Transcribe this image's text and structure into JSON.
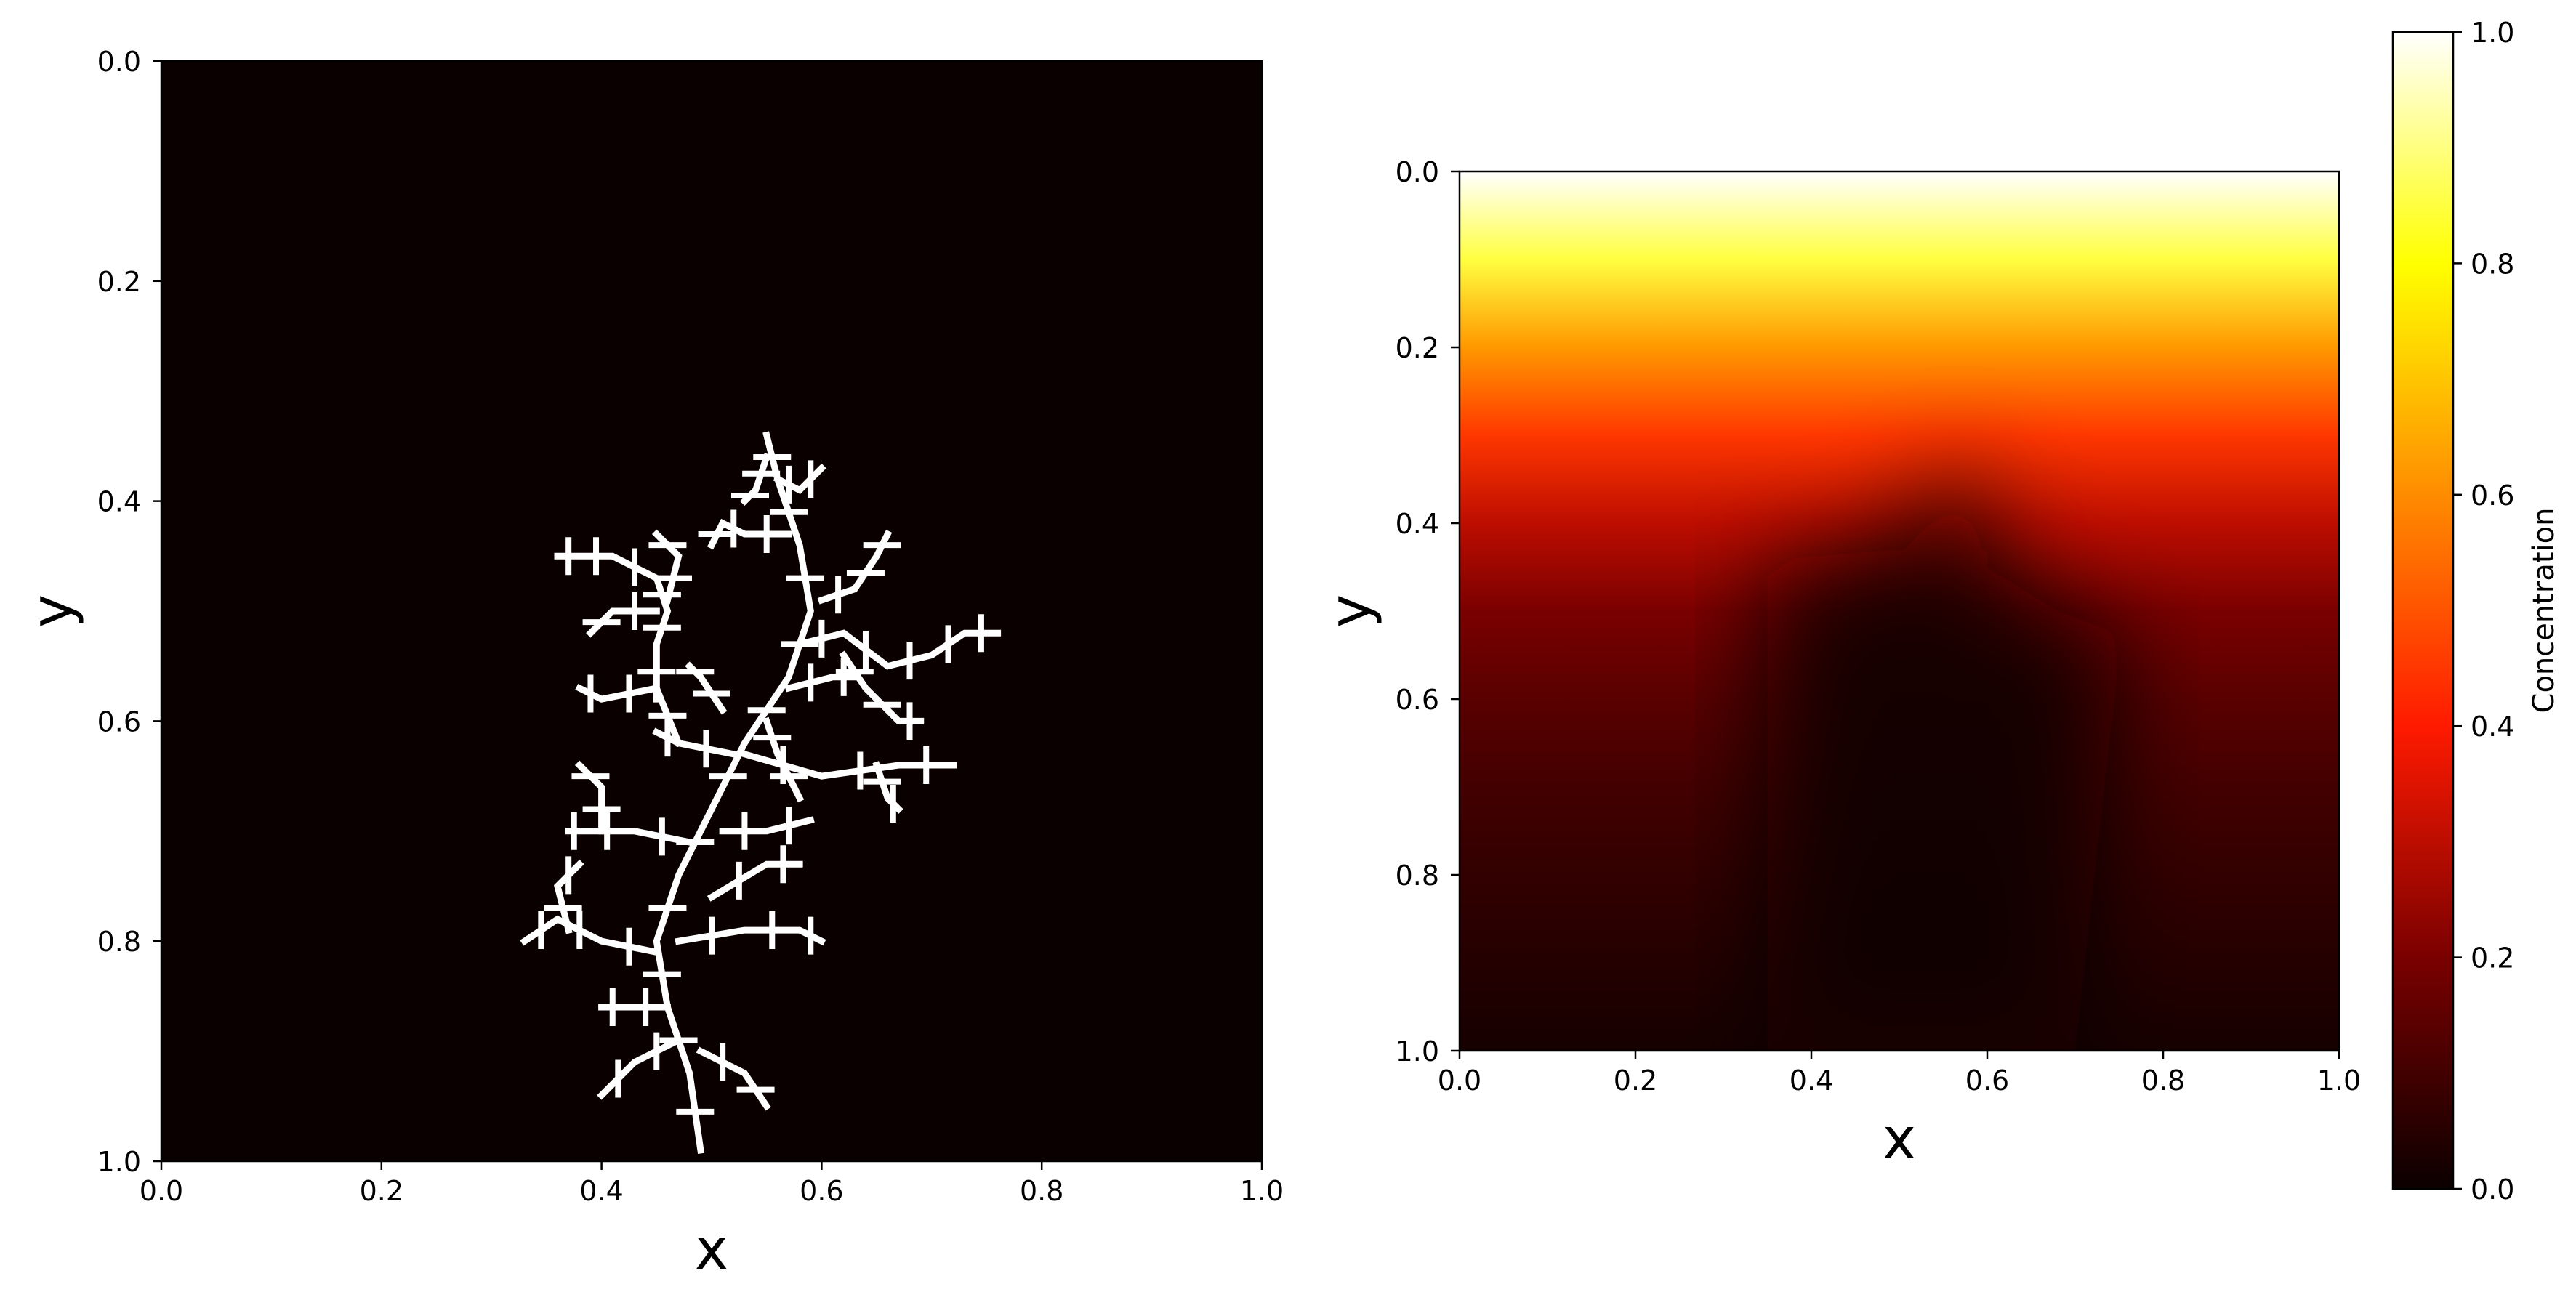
{
  "chart_data": [
    {
      "type": "heatmap",
      "title": "",
      "xlabel": "x",
      "ylabel": "y",
      "xlim": [
        0.0,
        1.0
      ],
      "ylim": [
        1.0,
        0.0
      ],
      "xticks": [
        "0.0",
        "0.2",
        "0.4",
        "0.6",
        "0.8",
        "1.0"
      ],
      "yticks": [
        "0.0",
        "0.2",
        "0.4",
        "0.6",
        "0.8",
        "1.0"
      ],
      "colormap": "hot",
      "background_color": "#0b0000",
      "cluster_color": "#ffffff",
      "cluster_extent": {
        "x": [
          0.33,
          0.76
        ],
        "y": [
          0.34,
          0.99
        ]
      },
      "cluster_branches": [
        [
          [
            0.49,
            0.99
          ],
          [
            0.48,
            0.92
          ],
          [
            0.46,
            0.86
          ],
          [
            0.45,
            0.8
          ],
          [
            0.47,
            0.74
          ],
          [
            0.5,
            0.68
          ],
          [
            0.53,
            0.62
          ],
          [
            0.57,
            0.56
          ],
          [
            0.59,
            0.5
          ],
          [
            0.58,
            0.44
          ],
          [
            0.56,
            0.38
          ],
          [
            0.55,
            0.34
          ]
        ],
        [
          [
            0.47,
            0.89
          ],
          [
            0.43,
            0.91
          ],
          [
            0.4,
            0.94
          ]
        ],
        [
          [
            0.49,
            0.9
          ],
          [
            0.53,
            0.92
          ],
          [
            0.55,
            0.95
          ]
        ],
        [
          [
            0.46,
            0.86
          ],
          [
            0.42,
            0.86
          ],
          [
            0.4,
            0.86
          ]
        ],
        [
          [
            0.45,
            0.81
          ],
          [
            0.4,
            0.8
          ],
          [
            0.36,
            0.78
          ],
          [
            0.33,
            0.8
          ]
        ],
        [
          [
            0.37,
            0.79
          ],
          [
            0.36,
            0.75
          ],
          [
            0.38,
            0.73
          ]
        ],
        [
          [
            0.47,
            0.8
          ],
          [
            0.53,
            0.79
          ],
          [
            0.58,
            0.79
          ],
          [
            0.6,
            0.8
          ]
        ],
        [
          [
            0.5,
            0.76
          ],
          [
            0.55,
            0.73
          ],
          [
            0.58,
            0.73
          ]
        ],
        [
          [
            0.48,
            0.71
          ],
          [
            0.43,
            0.7
          ],
          [
            0.38,
            0.7
          ],
          [
            0.37,
            0.7
          ]
        ],
        [
          [
            0.4,
            0.7
          ],
          [
            0.4,
            0.66
          ],
          [
            0.38,
            0.64
          ]
        ],
        [
          [
            0.51,
            0.7
          ],
          [
            0.55,
            0.7
          ],
          [
            0.59,
            0.69
          ]
        ],
        [
          [
            0.53,
            0.63
          ],
          [
            0.6,
            0.65
          ],
          [
            0.67,
            0.64
          ],
          [
            0.72,
            0.64
          ]
        ],
        [
          [
            0.65,
            0.64
          ],
          [
            0.66,
            0.67
          ],
          [
            0.67,
            0.68
          ]
        ],
        [
          [
            0.52,
            0.63
          ],
          [
            0.47,
            0.62
          ],
          [
            0.45,
            0.61
          ]
        ],
        [
          [
            0.47,
            0.62
          ],
          [
            0.45,
            0.57
          ],
          [
            0.4,
            0.58
          ],
          [
            0.38,
            0.57
          ]
        ],
        [
          [
            0.45,
            0.58
          ],
          [
            0.45,
            0.53
          ],
          [
            0.46,
            0.5
          ],
          [
            0.45,
            0.47
          ],
          [
            0.41,
            0.45
          ],
          [
            0.38,
            0.45
          ],
          [
            0.36,
            0.45
          ]
        ],
        [
          [
            0.45,
            0.5
          ],
          [
            0.41,
            0.5
          ],
          [
            0.39,
            0.52
          ]
        ],
        [
          [
            0.46,
            0.49
          ],
          [
            0.47,
            0.45
          ],
          [
            0.45,
            0.43
          ]
        ],
        [
          [
            0.57,
            0.57
          ],
          [
            0.61,
            0.56
          ],
          [
            0.63,
            0.56
          ]
        ],
        [
          [
            0.58,
            0.53
          ],
          [
            0.62,
            0.52
          ],
          [
            0.66,
            0.55
          ],
          [
            0.7,
            0.54
          ],
          [
            0.73,
            0.52
          ],
          [
            0.76,
            0.52
          ]
        ],
        [
          [
            0.62,
            0.54
          ],
          [
            0.64,
            0.57
          ],
          [
            0.67,
            0.6
          ],
          [
            0.69,
            0.6
          ]
        ],
        [
          [
            0.6,
            0.49
          ],
          [
            0.63,
            0.48
          ],
          [
            0.65,
            0.45
          ],
          [
            0.66,
            0.43
          ]
        ],
        [
          [
            0.57,
            0.43
          ],
          [
            0.53,
            0.43
          ],
          [
            0.51,
            0.42
          ],
          [
            0.5,
            0.44
          ]
        ],
        [
          [
            0.56,
            0.38
          ],
          [
            0.58,
            0.39
          ],
          [
            0.6,
            0.37
          ]
        ],
        [
          [
            0.55,
            0.36
          ],
          [
            0.54,
            0.39
          ],
          [
            0.53,
            0.4
          ]
        ],
        [
          [
            0.51,
            0.59
          ],
          [
            0.49,
            0.56
          ],
          [
            0.48,
            0.55
          ]
        ],
        [
          [
            0.55,
            0.6
          ],
          [
            0.56,
            0.63
          ],
          [
            0.58,
            0.67
          ]
        ]
      ]
    },
    {
      "type": "heatmap",
      "title": "",
      "xlabel": "x",
      "ylabel": "y",
      "xlim": [
        0.0,
        1.0
      ],
      "ylim": [
        1.0,
        0.0
      ],
      "xticks": [
        "0.0",
        "0.2",
        "0.4",
        "0.6",
        "0.8",
        "1.0"
      ],
      "yticks": [
        "0.0",
        "0.2",
        "0.4",
        "0.6",
        "0.8",
        "1.0"
      ],
      "colormap": "hot",
      "colorbar": {
        "label": "Concentration",
        "range": [
          0.0,
          1.0
        ],
        "ticks": [
          "0.0",
          "0.2",
          "0.4",
          "0.6",
          "0.8",
          "1.0"
        ],
        "stops": [
          {
            "value": 0.0,
            "color": "#0b0000"
          },
          {
            "value": 0.2,
            "color": "#7a0000"
          },
          {
            "value": 0.4,
            "color": "#ff1a00"
          },
          {
            "value": 0.6,
            "color": "#ff8c00"
          },
          {
            "value": 0.8,
            "color": "#ffff00"
          },
          {
            "value": 1.0,
            "color": "#ffffff"
          }
        ]
      },
      "concentration_profile": {
        "y": [
          0.0,
          0.1,
          0.2,
          0.3,
          0.4,
          0.5,
          0.6,
          0.7,
          0.8,
          1.0
        ],
        "value_near_edges": [
          1.0,
          0.85,
          0.62,
          0.45,
          0.3,
          0.2,
          0.14,
          0.1,
          0.07,
          0.02
        ],
        "value_at_center": [
          1.0,
          0.82,
          0.55,
          0.32,
          0.12,
          0.04,
          0.02,
          0.01,
          0.01,
          0.0
        ]
      },
      "depleted_region_outline": [
        [
          0.35,
          1.0
        ],
        [
          0.35,
          0.46
        ],
        [
          0.38,
          0.44
        ],
        [
          0.5,
          0.43
        ],
        [
          0.53,
          0.38
        ],
        [
          0.56,
          0.34
        ],
        [
          0.6,
          0.36
        ],
        [
          0.6,
          0.45
        ],
        [
          0.68,
          0.5
        ],
        [
          0.76,
          0.53
        ],
        [
          0.74,
          0.64
        ],
        [
          0.7,
          1.0
        ]
      ]
    }
  ]
}
